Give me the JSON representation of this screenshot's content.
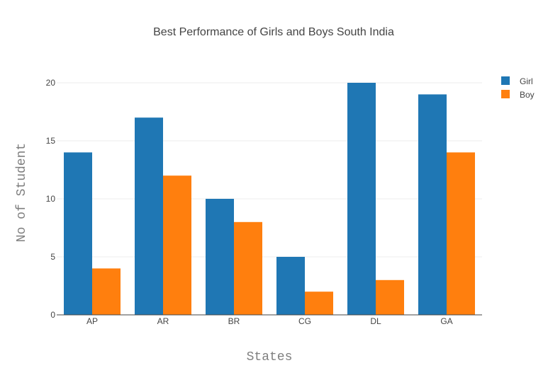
{
  "chart_data": {
    "type": "bar",
    "title": "Best Performance of Girls and Boys South India",
    "xlabel": "States",
    "ylabel": "No of Student",
    "categories": [
      "AP",
      "AR",
      "BR",
      "CG",
      "DL",
      "GA"
    ],
    "series": [
      {
        "name": "Girl",
        "values": [
          14,
          17,
          10,
          5,
          20,
          19
        ],
        "color": "#1f77b4"
      },
      {
        "name": "Boy",
        "values": [
          4,
          12,
          8,
          2,
          3,
          14
        ],
        "color": "#ff7f0e"
      }
    ],
    "ylim": [
      0,
      21
    ],
    "yticks": [
      0,
      5,
      10,
      15,
      20
    ],
    "grid": true,
    "legend_position": "top-right"
  }
}
